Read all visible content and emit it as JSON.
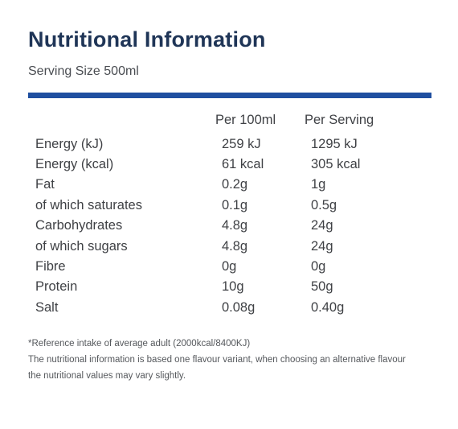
{
  "title": "Nutritional Information",
  "serving_size": "Serving Size 500ml",
  "columns": {
    "per_100ml": "Per 100ml",
    "per_serving": "Per Serving"
  },
  "rows": [
    {
      "name": "Energy (kJ)",
      "per_100ml": "259 kJ",
      "per_serving": "1295 kJ"
    },
    {
      "name": "Energy (kcal)",
      "per_100ml": "61 kcal",
      "per_serving": "305 kcal"
    },
    {
      "name": "Fat",
      "per_100ml": "0.2g",
      "per_serving": "1g"
    },
    {
      "name": "of which saturates",
      "per_100ml": "0.1g",
      "per_serving": "0.5g"
    },
    {
      "name": "Carbohydrates",
      "per_100ml": "4.8g",
      "per_serving": "24g"
    },
    {
      "name": "of which sugars",
      "per_100ml": "4.8g",
      "per_serving": "24g"
    },
    {
      "name": "Fibre",
      "per_100ml": "0g",
      "per_serving": "0g"
    },
    {
      "name": "Protein",
      "per_100ml": "10g",
      "per_serving": "50g"
    },
    {
      "name": "Salt",
      "per_100ml": "0.08g",
      "per_serving": "0.40g"
    }
  ],
  "footnotes": {
    "reference": "*Reference intake of average adult (2000kcal/8400KJ)",
    "disclaimer_line1": "The nutritional information is based one flavour variant, when choosing an alternative flavour",
    "disclaimer_line2": "the nutritional values may vary slightly."
  },
  "colors": {
    "title": "#1f3557",
    "accent_rule": "#1f4fa0",
    "text": "#3f4145"
  }
}
